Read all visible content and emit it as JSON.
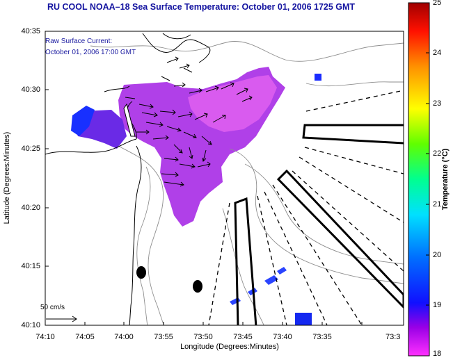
{
  "title": "RU COOL  NOAA–18  Sea Surface Temperature:  October 01, 2006 1725 GMT",
  "annotation": {
    "line1": "Raw Surface Current:",
    "line2": "October 01, 2006 17:00 GMT"
  },
  "axes": {
    "xlabel": "Longitude (Degrees:Minutes)",
    "ylabel": "Latitude (Degrees:Minutes)",
    "lon_ticks": [
      "74:10",
      "74:05",
      "74:00",
      "73:55",
      "73:50",
      "73:45",
      "73:40",
      "73:35",
      "73:3"
    ],
    "lat_ticks": [
      "40:35",
      "40:30",
      "40:25",
      "40:20",
      "40:15",
      "40:10"
    ]
  },
  "colorbar": {
    "title": "Temperature (°C)",
    "ticks": [
      "25",
      "24",
      "23",
      "22",
      "21",
      "20",
      "19",
      "18"
    ],
    "range": [
      18,
      25
    ],
    "colormap": [
      "#ff00ff",
      "#7a00e6",
      "#0000ff",
      "#0050ff",
      "#00c8ff",
      "#00ff96",
      "#50ff00",
      "#ffff00",
      "#ff9600",
      "#ff0000",
      "#a00000"
    ]
  },
  "scale": {
    "label": "50 cm/s"
  },
  "colors": {
    "title": "#1414a0",
    "sst_warm": "#e050e8",
    "sst_mid": "#8a30e0",
    "sst_cool": "#2040ff",
    "land_line": "#000000",
    "bathymetry": "#909090"
  }
}
